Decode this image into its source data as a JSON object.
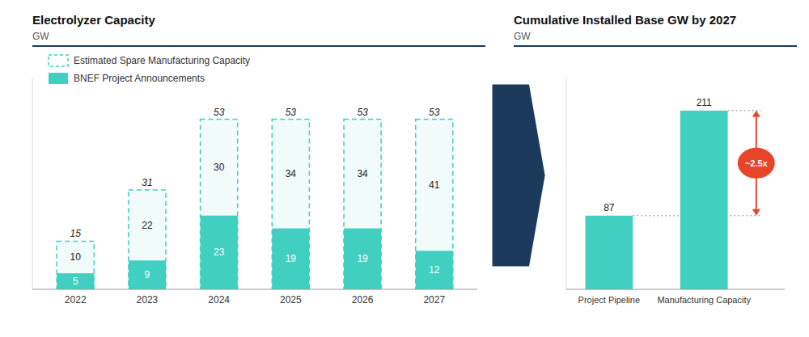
{
  "chart_data": [
    {
      "type": "bar",
      "title": "Electrolyzer Capacity",
      "subtitle": "GW",
      "categories": [
        "2022",
        "2023",
        "2024",
        "2025",
        "2026",
        "2027"
      ],
      "series": [
        {
          "name": "BNEF Project Announcements",
          "color": "#40cfc0",
          "values": [
            5,
            9,
            23,
            19,
            19,
            12
          ]
        },
        {
          "name": "Estimated Spare Manufacturing Capacity",
          "color": "#40cfc0",
          "line_style": "dashed",
          "values": [
            10,
            22,
            30,
            34,
            34,
            41
          ]
        }
      ],
      "totals": [
        15,
        31,
        53,
        53,
        53,
        53
      ],
      "stacked": true,
      "data_labels": true,
      "legend": "upper left",
      "ylim": [
        0,
        66
      ],
      "tick_labels": "x"
    },
    {
      "type": "bar",
      "title": "Cumulative Installed Base GW by 2027",
      "subtitle": "GW",
      "categories": [
        "Project Pipeline",
        "Manufacturing Capacity"
      ],
      "values": [
        87,
        211
      ],
      "color": "#40cfc0",
      "annotations": [
        {
          "text": "~2.5x",
          "color": "#e8442a"
        }
      ],
      "data_labels": true,
      "ylim": [
        0,
        250
      ],
      "tick_labels": "x"
    }
  ]
}
